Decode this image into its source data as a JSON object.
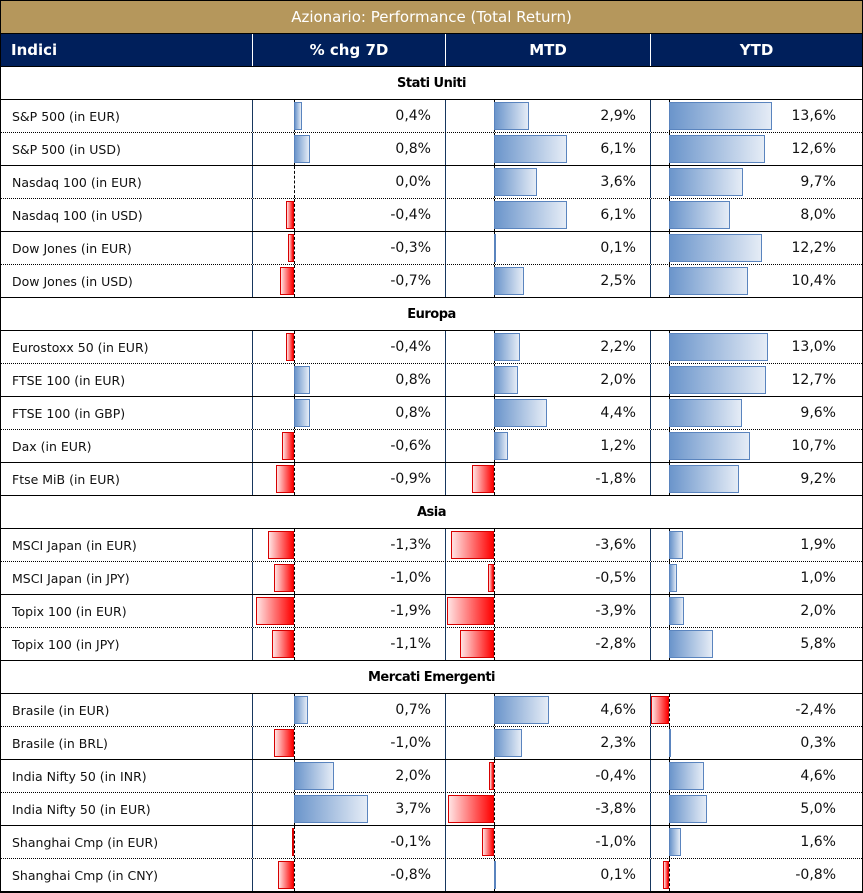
{
  "title": "Azionario: Performance (Total Return)",
  "colors": {
    "title_bg": "#B5975C",
    "header_bg": "#001F5B",
    "positive_bar": "#6B95CB",
    "negative_bar": "#FF0000"
  },
  "header": {
    "col_name": "Indici",
    "col_7d": "% chg 7D",
    "col_mtd": "MTD",
    "col_ytd": "YTD"
  },
  "sections": [
    {
      "title": "Stati Uniti",
      "rows": [
        {
          "name": "S&P 500 (in EUR)",
          "d7": 0.4,
          "d7_label": "0,4%",
          "mtd": 2.9,
          "mtd_label": "2,9%",
          "ytd": 13.6,
          "ytd_label": "13,6%"
        },
        {
          "name": "S&P 500 (in USD)",
          "d7": 0.8,
          "d7_label": "0,8%",
          "mtd": 6.1,
          "mtd_label": "6,1%",
          "ytd": 12.6,
          "ytd_label": "12,6%"
        },
        {
          "name": "Nasdaq 100 (in EUR)",
          "d7": 0.0,
          "d7_label": "0,0%",
          "mtd": 3.6,
          "mtd_label": "3,6%",
          "ytd": 9.7,
          "ytd_label": "9,7%"
        },
        {
          "name": "Nasdaq 100 (in USD)",
          "d7": -0.4,
          "d7_label": "-0,4%",
          "mtd": 6.1,
          "mtd_label": "6,1%",
          "ytd": 8.0,
          "ytd_label": "8,0%"
        },
        {
          "name": "Dow Jones (in EUR)",
          "d7": -0.3,
          "d7_label": "-0,3%",
          "mtd": 0.1,
          "mtd_label": "0,1%",
          "ytd": 12.2,
          "ytd_label": "12,2%"
        },
        {
          "name": "Dow Jones (in USD)",
          "d7": -0.7,
          "d7_label": "-0,7%",
          "mtd": 2.5,
          "mtd_label": "2,5%",
          "ytd": 10.4,
          "ytd_label": "10,4%"
        }
      ]
    },
    {
      "title": "Europa",
      "rows": [
        {
          "name": "Eurostoxx 50 (in EUR)",
          "d7": -0.4,
          "d7_label": "-0,4%",
          "mtd": 2.2,
          "mtd_label": "2,2%",
          "ytd": 13.0,
          "ytd_label": "13,0%"
        },
        {
          "name": "FTSE 100 (in EUR)",
          "d7": 0.8,
          "d7_label": "0,8%",
          "mtd": 2.0,
          "mtd_label": "2,0%",
          "ytd": 12.7,
          "ytd_label": "12,7%"
        },
        {
          "name": "FTSE 100 (in GBP)",
          "d7": 0.8,
          "d7_label": "0,8%",
          "mtd": 4.4,
          "mtd_label": "4,4%",
          "ytd": 9.6,
          "ytd_label": "9,6%"
        },
        {
          "name": "Dax (in EUR)",
          "d7": -0.6,
          "d7_label": "-0,6%",
          "mtd": 1.2,
          "mtd_label": "1,2%",
          "ytd": 10.7,
          "ytd_label": "10,7%"
        },
        {
          "name": "Ftse MiB (in EUR)",
          "d7": -0.9,
          "d7_label": "-0,9%",
          "mtd": -1.8,
          "mtd_label": "-1,8%",
          "ytd": 9.2,
          "ytd_label": "9,2%"
        }
      ]
    },
    {
      "title": "Asia",
      "rows": [
        {
          "name": "MSCI Japan (in EUR)",
          "d7": -1.3,
          "d7_label": "-1,3%",
          "mtd": -3.6,
          "mtd_label": "-3,6%",
          "ytd": 1.9,
          "ytd_label": "1,9%"
        },
        {
          "name": "MSCI Japan (in JPY)",
          "d7": -1.0,
          "d7_label": "-1,0%",
          "mtd": -0.5,
          "mtd_label": "-0,5%",
          "ytd": 1.0,
          "ytd_label": "1,0%"
        },
        {
          "name": "Topix 100 (in EUR)",
          "d7": -1.9,
          "d7_label": "-1,9%",
          "mtd": -3.9,
          "mtd_label": "-3,9%",
          "ytd": 2.0,
          "ytd_label": "2,0%"
        },
        {
          "name": "Topix 100 (in JPY)",
          "d7": -1.1,
          "d7_label": "-1,1%",
          "mtd": -2.8,
          "mtd_label": "-2,8%",
          "ytd": 5.8,
          "ytd_label": "5,8%"
        }
      ]
    },
    {
      "title": "Mercati Emergenti",
      "rows": [
        {
          "name": "Brasile (in EUR)",
          "d7": 0.7,
          "d7_label": "0,7%",
          "mtd": 4.6,
          "mtd_label": "4,6%",
          "ytd": -2.4,
          "ytd_label": "-2,4%"
        },
        {
          "name": "Brasile (in BRL)",
          "d7": -1.0,
          "d7_label": "-1,0%",
          "mtd": 2.3,
          "mtd_label": "2,3%",
          "ytd": 0.3,
          "ytd_label": "0,3%"
        },
        {
          "name": "India Nifty 50 (in INR)",
          "d7": 2.0,
          "d7_label": "2,0%",
          "mtd": -0.4,
          "mtd_label": "-0,4%",
          "ytd": 4.6,
          "ytd_label": "4,6%"
        },
        {
          "name": "India Nifty 50 (in EUR)",
          "d7": 3.7,
          "d7_label": "3,7%",
          "mtd": -3.8,
          "mtd_label": "-3,8%",
          "ytd": 5.0,
          "ytd_label": "5,0%"
        },
        {
          "name": "Shanghai Cmp (in EUR)",
          "d7": -0.1,
          "d7_label": "-0,1%",
          "mtd": -1.0,
          "mtd_label": "-1,0%",
          "ytd": 1.6,
          "ytd_label": "1,6%"
        },
        {
          "name": "Shanghai Cmp (in CNY)",
          "d7": -0.8,
          "d7_label": "-0,8%",
          "mtd": 0.1,
          "mtd_label": "0,1%",
          "ytd": -0.8,
          "ytd_label": "-0,8%"
        }
      ]
    }
  ]
}
